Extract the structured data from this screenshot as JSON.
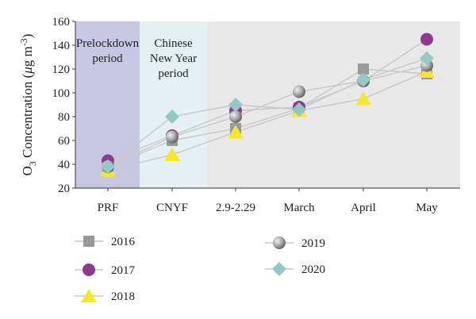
{
  "chart_data": {
    "type": "line",
    "title": "",
    "xlabel": "",
    "ylabel_main": "O",
    "ylabel_sub": "3",
    "ylabel_rest": " Concentration (",
    "ylabel_mu": "μ",
    "ylabel_unit": "g m",
    "ylabel_sup": "-3",
    "ylabel_close": ")",
    "categories": [
      "PRF",
      "CNYF",
      "2.9-2.29",
      "March",
      "April",
      "May"
    ],
    "ylim": [
      20,
      160
    ],
    "yticks": [
      "20",
      "40",
      "60",
      "80",
      "100",
      "120",
      "140",
      "160"
    ],
    "grid": false,
    "legend_position": "bottom",
    "bands": [
      {
        "lines": [
          "Prelockdown",
          "period"
        ],
        "color": "#c9c6e4"
      },
      {
        "lines": [
          "Chinese",
          "New Year",
          "period"
        ],
        "color": "#e4f0f1"
      },
      {
        "lines": [],
        "color": "#e8e8e8"
      }
    ],
    "series": [
      {
        "name": "2016",
        "marker": "square",
        "color": "#9a9a9a",
        "values": [
          38,
          60,
          70,
          87,
          120,
          116
        ]
      },
      {
        "name": "2017",
        "marker": "circle",
        "color": "#8e3b8f",
        "values": [
          43,
          64,
          85,
          88,
          110,
          145
        ]
      },
      {
        "name": "2018",
        "marker": "triangle",
        "color": "#f5e72c",
        "values": [
          35,
          48,
          67,
          85,
          95,
          118
        ]
      },
      {
        "name": "2019",
        "marker": "sphere",
        "color": "#8a8a8a",
        "values": [
          38,
          63,
          80,
          101,
          110,
          123
        ]
      },
      {
        "name": "2020",
        "marker": "diamond",
        "color": "#93c9c5",
        "values": [
          38,
          80,
          90,
          86,
          111,
          129
        ]
      }
    ]
  }
}
